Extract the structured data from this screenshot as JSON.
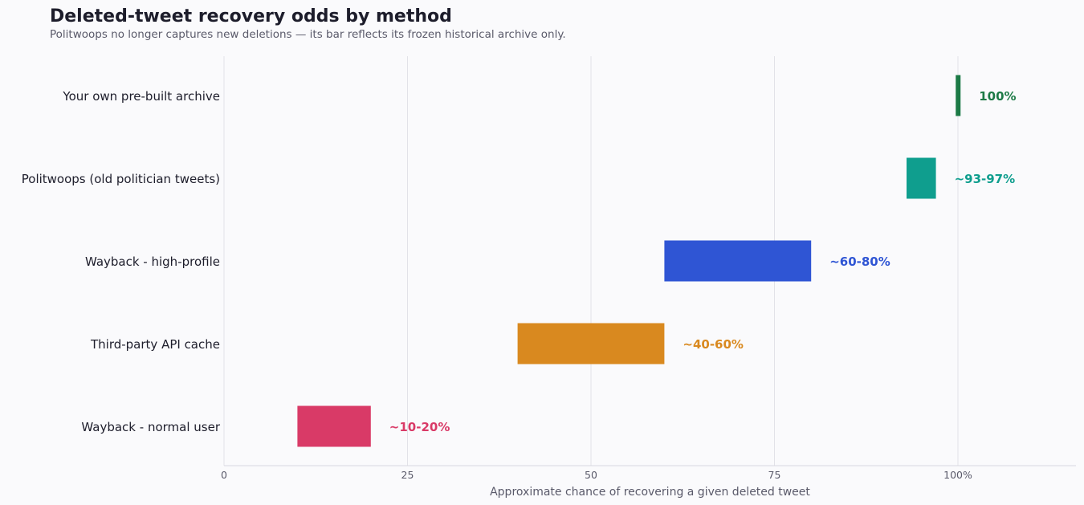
{
  "chart_data": {
    "type": "bar",
    "orientation": "horizontal",
    "title": "Deleted-tweet recovery odds by method",
    "subtitle": "Politwoops no longer captures new deletions — its bar reflects its frozen historical archive only.",
    "xlabel": "Approximate chance of recovering a given deleted tweet",
    "ylabel": "",
    "xlim": [
      0,
      116
    ],
    "xticks": [
      0,
      25,
      50,
      75,
      100
    ],
    "xtick_labels": [
      "0",
      "25",
      "50",
      "75",
      "100%"
    ],
    "grid": "vertical",
    "categories": [
      "Your own pre-built archive",
      "Politwoops (old politician tweets)",
      "Wayback - high-profile",
      "Third-party API cache",
      "Wayback - normal user"
    ],
    "ranges": [
      [
        99.7,
        100
      ],
      [
        93,
        97
      ],
      [
        60,
        80
      ],
      [
        40,
        60
      ],
      [
        10,
        20
      ]
    ],
    "labels": [
      "100%",
      "~93-97%",
      "~60-80%",
      "~40-60%",
      "~10-20%"
    ],
    "colors": [
      "#1c7a46",
      "#0f9e8e",
      "#2f55d4",
      "#d9891f",
      "#d93a67"
    ]
  }
}
